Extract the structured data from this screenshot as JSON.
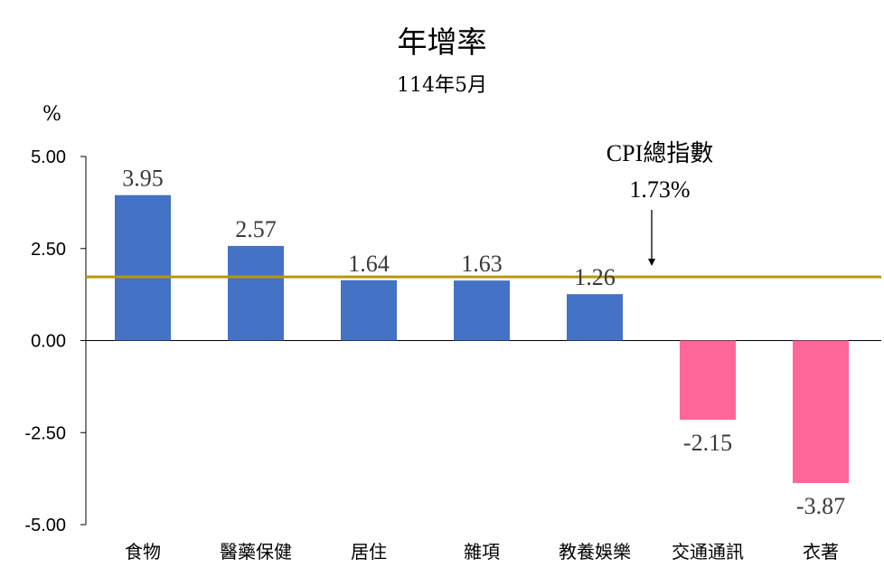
{
  "chart_data": {
    "type": "bar",
    "title": "年增率",
    "subtitle": "114年5月",
    "ylabel": "%",
    "ylim": [
      -5,
      5
    ],
    "yticks": [
      "5.00",
      "2.50",
      "0.00",
      "-2.50",
      "-5.00"
    ],
    "categories": [
      "食物",
      "醫藥保健",
      "居住",
      "雜項",
      "教養娛樂",
      "交通通訊",
      "衣著"
    ],
    "values": [
      3.95,
      2.57,
      1.64,
      1.63,
      1.26,
      -2.15,
      -3.87
    ],
    "value_labels": [
      "3.95",
      "2.57",
      "1.64",
      "1.63",
      "1.26",
      "-2.15",
      "-3.87"
    ],
    "reference_line": {
      "label": "CPI總指數",
      "value": 1.73,
      "value_label": "1.73%",
      "color": "#B8960C"
    },
    "colors": {
      "positive": "#4472C4",
      "negative": "#FF6699"
    },
    "grid": false,
    "legend": "none"
  }
}
